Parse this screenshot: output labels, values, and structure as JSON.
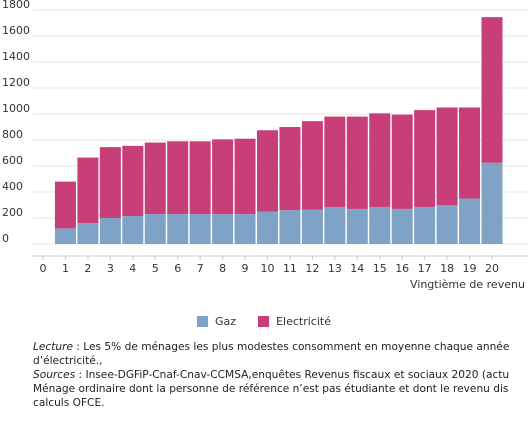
{
  "chart_data": {
    "type": "bar",
    "stacked": true,
    "categories": [
      "0",
      "1",
      "2",
      "3",
      "4",
      "5",
      "6",
      "7",
      "8",
      "9",
      "10",
      "11",
      "12",
      "13",
      "14",
      "15",
      "16",
      "17",
      "18",
      "19",
      "20"
    ],
    "series": [
      {
        "name": "Gaz",
        "color": "#7fa3c6",
        "values": [
          null,
          120,
          160,
          200,
          215,
          230,
          230,
          230,
          230,
          230,
          250,
          260,
          265,
          285,
          270,
          285,
          270,
          285,
          300,
          350,
          625
        ]
      },
      {
        "name": "Electricité",
        "color": "#c83e79",
        "values": [
          null,
          360,
          505,
          545,
          540,
          550,
          560,
          560,
          575,
          580,
          625,
          640,
          680,
          695,
          710,
          720,
          725,
          745,
          750,
          700,
          1120
        ]
      }
    ],
    "yticks": [
      0,
      200,
      400,
      600,
      800,
      1000,
      1200,
      1400,
      1600,
      1800
    ],
    "ylim": [
      0,
      1800
    ],
    "xlabel": "Vingtième de revenu",
    "ylabel": "",
    "grid": true,
    "legend_position": "bottom"
  },
  "legend": {
    "gaz": "Gaz",
    "electricite": "Electricité"
  },
  "notes": {
    "lecture_label": "Lecture",
    "lecture_text": " : Les 5% de ménages les plus modestes consomment en moyenne chaque année",
    "lecture_line2": "d’électricité.,",
    "sources_label": "Sources",
    "sources_text": " : Insee-DGFiP-Cnaf-Cnav-CCMSA,enquêtes Revenus fiscaux et sociaux 2020 (actu",
    "menage_line": "Ménage ordinaire dont la personne de référence n’est pas étudiante et dont le revenu dis",
    "calculs_line": "calculs OFCE."
  }
}
